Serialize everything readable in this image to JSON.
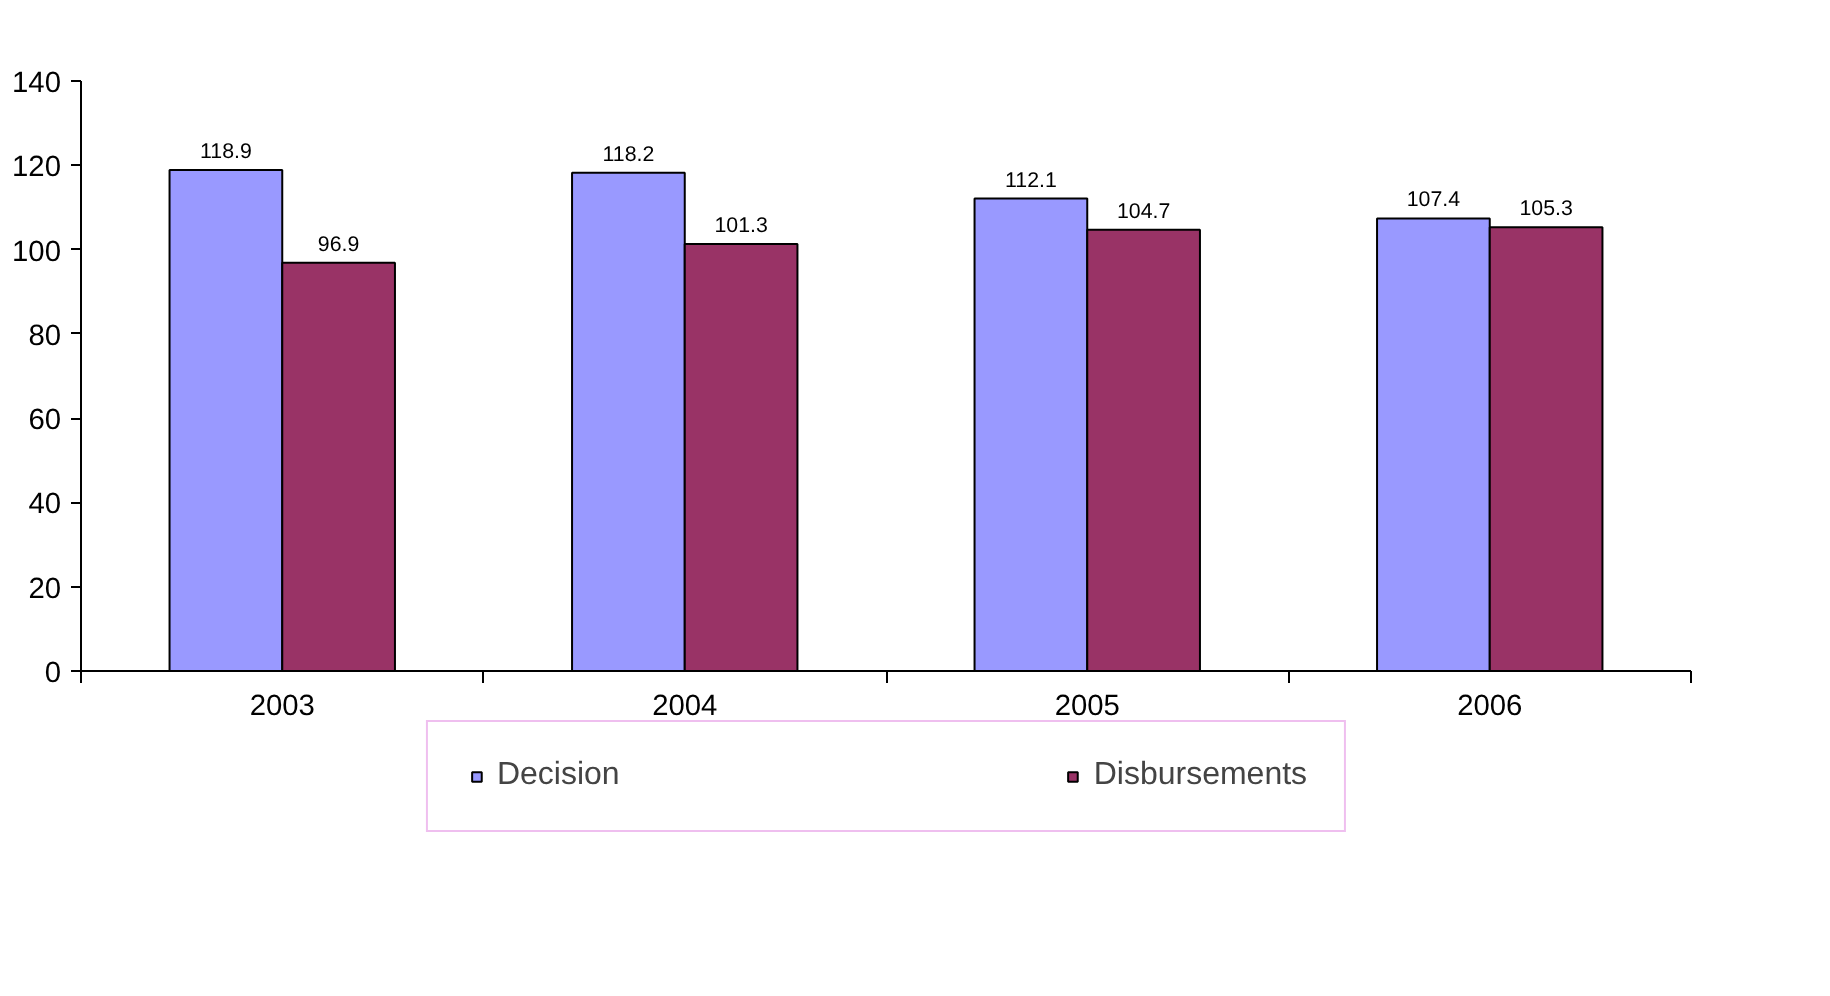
{
  "chart_data": {
    "type": "bar",
    "categories": [
      "2003",
      "2004",
      "2005",
      "2006"
    ],
    "series": [
      {
        "name": "Decision",
        "color": "#9999ff",
        "values": [
          118.9,
          118.2,
          112.1,
          107.4
        ]
      },
      {
        "name": "Disbursements",
        "color": "#993366",
        "values": [
          96.9,
          101.3,
          104.7,
          105.3
        ]
      }
    ],
    "ylim": [
      0,
      140
    ],
    "yticks": [
      0,
      20,
      40,
      60,
      80,
      100,
      120,
      140
    ],
    "grid": false,
    "legend": "bottom",
    "data_labels": true
  }
}
